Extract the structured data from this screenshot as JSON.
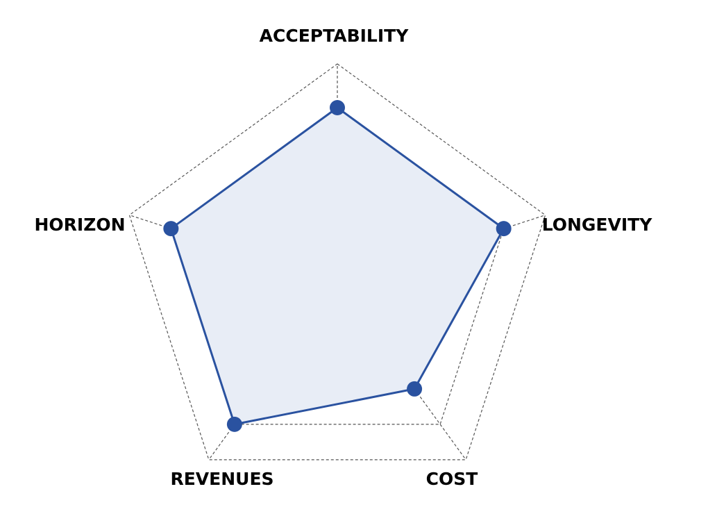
{
  "chart_data": {
    "type": "radar",
    "axes": [
      "ACCEPTABILITY",
      "LONGEVITY",
      "COST",
      "REVENUES",
      "HORIZON"
    ],
    "series": [
      {
        "values": [
          0.8,
          0.8,
          0.6,
          0.8,
          0.8
        ]
      }
    ],
    "rlim": [
      0,
      1
    ],
    "grid_levels": 5,
    "grid": true,
    "colors": {
      "line": "#2a52a0",
      "fill": "#e8edf6",
      "marker": "#2a52a0",
      "grid": "#555555"
    }
  }
}
